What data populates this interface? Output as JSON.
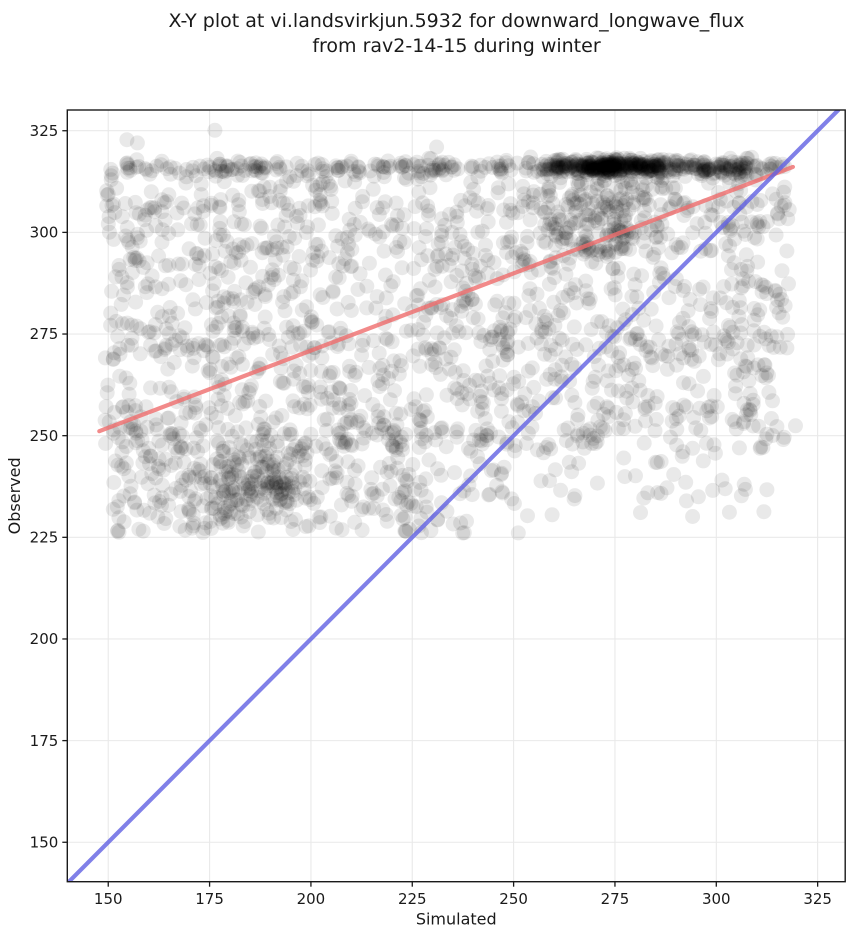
{
  "figure": {
    "title_line1": "X-Y plot at vi.landsvirkjun.5932 for downward_longwave_flux",
    "title_line2": "from rav2-14-15 during winter"
  },
  "chart_data": {
    "type": "scatter",
    "title": "X-Y plot at vi.landsvirkjun.5932 for downward_longwave_flux from rav2-14-15 during winter",
    "xlabel": "Simulated",
    "ylabel": "Observed",
    "xlim": [
      139.9,
      331.8
    ],
    "ylim": [
      140.3,
      330.1
    ],
    "xticks": [
      150,
      175,
      200,
      225,
      250,
      275,
      300,
      325
    ],
    "yticks": [
      150,
      175,
      200,
      225,
      250,
      275,
      300,
      325
    ],
    "grid": true,
    "grid_color": "#e9e9e9",
    "spine_color": "#1a1a1a",
    "text_color": "#1a1a1a",
    "background": "#ffffff",
    "point_style": {
      "radius": 7.5,
      "color": "#000000",
      "opacity": 0.085
    },
    "lines": [
      {
        "name": "regression-line",
        "color": "#ef6d6d",
        "opacity": 0.8,
        "width": 4.2,
        "x1": 147.8,
        "y1": 251.1,
        "x2": 318.9,
        "y2": 316.1
      },
      {
        "name": "identity-line",
        "color": "#6060e2",
        "opacity": 0.8,
        "width": 4.2,
        "x1": 140.3,
        "y1": 140.3,
        "x2": 330.1,
        "y2": 330.1
      }
    ],
    "scatter": {
      "seed": 20240515,
      "n_points_approx": 2870,
      "clusters": [
        {
          "label": "dense-band-core",
          "n": 340,
          "x": {
            "dist": "normal",
            "mean": 275,
            "sd": 10,
            "min": 253,
            "max": 298
          },
          "y": {
            "dist": "normal",
            "mean": 316.3,
            "sd": 0.9
          }
        },
        {
          "label": "dense-band-shoulder",
          "n": 60,
          "x": {
            "dist": "uniform",
            "min": 296,
            "max": 308
          },
          "y": {
            "dist": "normal",
            "mean": 315.8,
            "sd": 1.0
          }
        },
        {
          "label": "band-wide",
          "n": 250,
          "x": {
            "dist": "uniform",
            "min": 154,
            "max": 317
          },
          "y": {
            "dist": "normal",
            "mean": 316.2,
            "sd": 0.9
          }
        },
        {
          "label": "band-fringe",
          "n": 170,
          "x": {
            "dist": "uniform",
            "min": 158,
            "max": 318
          },
          "y": {
            "dist": "uniform",
            "min": 306,
            "max": 315.5
          }
        },
        {
          "label": "funnel-under-band",
          "n": 140,
          "x": {
            "dist": "normal",
            "mean": 270,
            "sd": 9,
            "min": 248,
            "max": 296
          },
          "y": {
            "dist": "uniform",
            "min": 294,
            "max": 314
          }
        },
        {
          "label": "upper-mid-cloud",
          "n": 760,
          "x": {
            "dist": "uniform",
            "min": 150,
            "max": 318,
            "skew": 1.08
          },
          "y": {
            "dist": "uniform",
            "min": 271,
            "max": 308
          }
        },
        {
          "label": "mid-cloud",
          "n": 540,
          "x": {
            "dist": "uniform",
            "min": 149,
            "max": 314,
            "skew": 1.1
          },
          "y": {
            "dist": "uniform",
            "min": 247,
            "max": 276
          }
        },
        {
          "label": "lower-left-cloud",
          "n": 330,
          "x": {
            "dist": "uniform",
            "min": 151,
            "max": 252
          },
          "y": {
            "dist": "uniform",
            "min": 226,
            "max": 252
          }
        },
        {
          "label": "lower-left-dense-cluster",
          "n": 160,
          "x": {
            "dist": "normal",
            "mean": 184,
            "sd": 9,
            "min": 163,
            "max": 206
          },
          "y": {
            "dist": "normal",
            "mean": 238,
            "sd": 5,
            "min": 227,
            "max": 250
          }
        },
        {
          "label": "lower-right-sparse",
          "n": 80,
          "x": {
            "dist": "uniform",
            "min": 252,
            "max": 320
          },
          "y": {
            "dist": "uniform",
            "min": 230,
            "max": 258
          }
        },
        {
          "label": "left-edge-string",
          "n": 10,
          "x": {
            "dist": "normal",
            "mean": 150.8,
            "sd": 1.0,
            "min": 148.5,
            "max": 153.5
          },
          "y": {
            "dist": "uniform",
            "min": 306,
            "max": 316
          }
        },
        {
          "label": "right-edge-string",
          "n": 25,
          "x": {
            "dist": "normal",
            "mean": 311,
            "sd": 4,
            "min": 302,
            "max": 321
          },
          "y": {
            "dist": "uniform",
            "min": 248,
            "max": 318
          }
        }
      ],
      "outliers": [
        [
          176.3,
          325.1
        ],
        [
          154.6,
          322.8
        ],
        [
          157.2,
          322.0
        ],
        [
          231.0,
          321.0
        ]
      ]
    }
  }
}
